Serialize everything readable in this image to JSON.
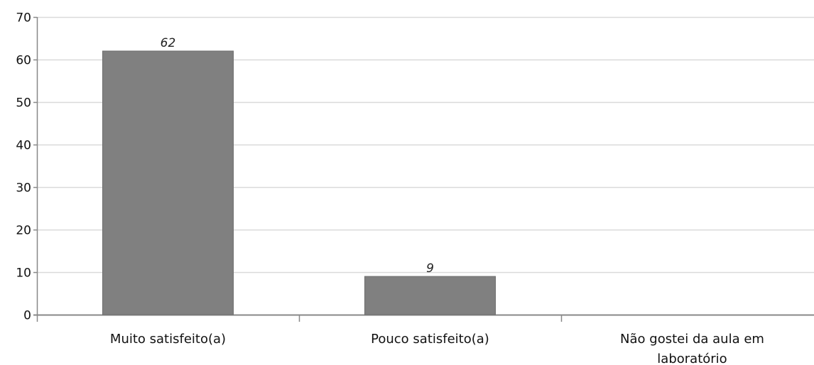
{
  "chart_data": {
    "type": "bar",
    "categories": [
      "Muito satisfeito(a)",
      "Pouco satisfeito(a)",
      "Não gostei da aula em laboratório"
    ],
    "category_lines": [
      [
        "Muito satisfeito(a)"
      ],
      [
        "Pouco satisfeito(a)"
      ],
      [
        "Não gostei da aula em",
        "laboratório"
      ]
    ],
    "values": [
      62,
      9,
      0
    ],
    "data_labels": [
      "62",
      "9",
      ""
    ],
    "ylim": [
      0,
      70
    ],
    "yticks": [
      0,
      10,
      20,
      30,
      40,
      50,
      60,
      70
    ],
    "ytick_labels": [
      "0",
      "10",
      "20",
      "30",
      "40",
      "50",
      "60",
      "70"
    ],
    "grid": true,
    "legend": "none",
    "title": "",
    "xlabel": "",
    "ylabel": "",
    "colors": {
      "bar": "#808080",
      "bar_edge": "#6e6e6e",
      "grid": "#d9d9d9",
      "axis": "#888888"
    }
  }
}
